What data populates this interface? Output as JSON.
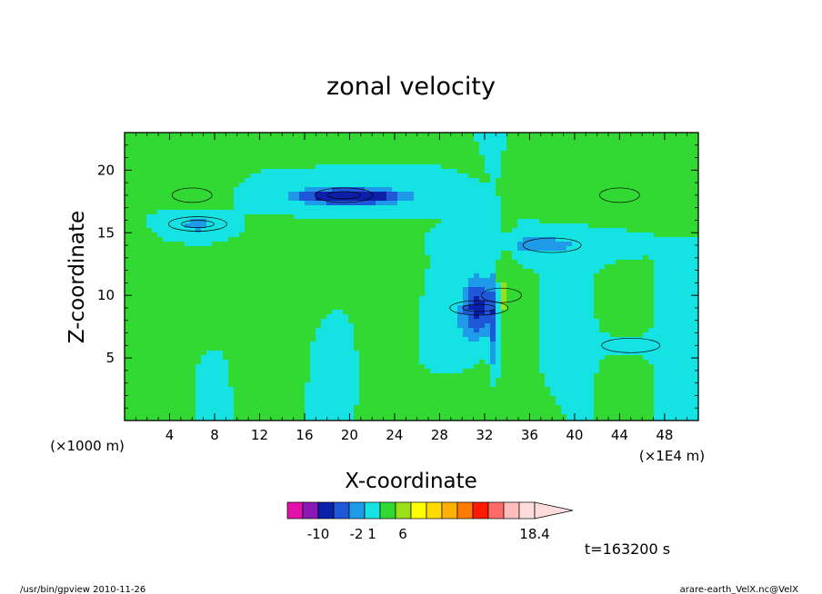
{
  "chart_data": {
    "type": "heatmap",
    "title": "zonal velocity",
    "xlabel": "X-coordinate",
    "ylabel": "Z-coordinate",
    "x_unit": "(×1E4 m)",
    "y_unit": "(×1000 m)",
    "xlim": [
      0,
      51
    ],
    "ylim": [
      0,
      23
    ],
    "x_ticks": [
      "4",
      "8",
      "12",
      "16",
      "20",
      "24",
      "28",
      "32",
      "36",
      "40",
      "44",
      "48"
    ],
    "y_ticks": [
      "5",
      "10",
      "15",
      "20"
    ],
    "colorbar": {
      "levels": [
        -14,
        -10,
        -6,
        -4,
        -2,
        1,
        6,
        10,
        14,
        18.4
      ],
      "tick_labels": [
        "-10",
        "-2",
        "1",
        "6",
        "18.4"
      ],
      "colors": [
        "#e010a8",
        "#8a18b8",
        "#0b1fa8",
        "#1e58d8",
        "#1e9ae8",
        "#15e3e3",
        "#33d933",
        "#99e019",
        "#ffff00",
        "#ffda00",
        "#ffb000",
        "#ff7a00",
        "#ff1a00",
        "#ff6a6a",
        "#ffbcbc",
        "#ffdcdc"
      ]
    },
    "features": [
      {
        "kind": "negative-core",
        "x": 19.5,
        "z": 18,
        "min": -12
      },
      {
        "kind": "negative-core",
        "x": 6.5,
        "z": 15.7,
        "min": -8
      },
      {
        "kind": "negative-core",
        "x": 31.5,
        "z": 9,
        "min": -10
      },
      {
        "kind": "negative-core",
        "x": 38,
        "z": 14,
        "min": -6
      },
      {
        "kind": "negative-core",
        "x": 45,
        "z": 6,
        "min": -3
      },
      {
        "kind": "positive-core",
        "x": 44,
        "z": 18,
        "max": 8
      },
      {
        "kind": "positive-core",
        "x": 6,
        "z": 18,
        "max": 6
      },
      {
        "kind": "positive-core",
        "x": 33.5,
        "z": 10,
        "max": 14
      }
    ]
  },
  "annotations": {
    "time": "t=163200 s",
    "footer_left": "/usr/bin/gpview   2010-11-26",
    "footer_right": "arare-earth_VelX.nc@VelX"
  }
}
